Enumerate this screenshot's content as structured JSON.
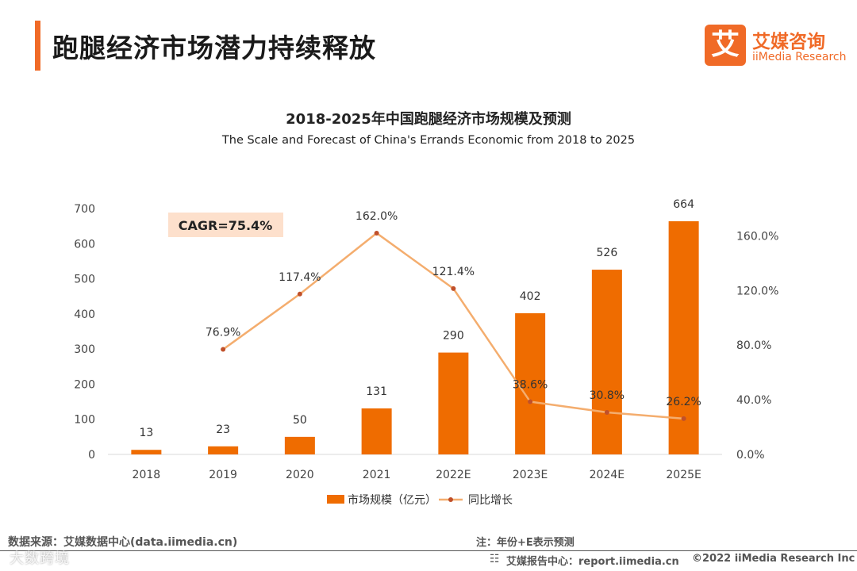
{
  "header": {
    "title": "跑腿经济市场潜力持续释放",
    "accent_color": "#f06a27"
  },
  "logo": {
    "mark": "艾",
    "name_cn": "艾媒咨询",
    "name_en": "iiMedia Research"
  },
  "chart_data": {
    "type": "bar",
    "title": "2018-2025年中国跑腿经济市场规模及预测",
    "subtitle": "The Scale and Forecast of China's Errands Economic from 2018 to 2025",
    "categories": [
      "2018",
      "2019",
      "2020",
      "2021",
      "2022E",
      "2023E",
      "2024E",
      "2025E"
    ],
    "series": [
      {
        "name": "市场规模（亿元）",
        "type": "bar",
        "axis": "left",
        "color": "#ef6c00",
        "values": [
          13,
          23,
          50,
          131,
          290,
          402,
          526,
          664
        ],
        "labels": [
          "13",
          "23",
          "50",
          "131",
          "290",
          "402",
          "526",
          "664"
        ]
      },
      {
        "name": "同比增长",
        "type": "line",
        "axis": "right",
        "color": "#f4ad6e",
        "values": [
          null,
          76.9,
          117.4,
          162.0,
          121.4,
          38.6,
          30.8,
          26.2
        ],
        "labels": [
          null,
          "76.9%",
          "117.4%",
          "162.0%",
          "121.4%",
          "38.6%",
          "30.8%",
          "26.2%"
        ]
      }
    ],
    "y_left": {
      "range": [
        0,
        700
      ],
      "ticks": [
        "0",
        "100",
        "200",
        "300",
        "400",
        "500",
        "600",
        "700"
      ]
    },
    "y_right": {
      "range": [
        0,
        180
      ],
      "ticks": [
        "0.0%",
        "40.0%",
        "80.0%",
        "120.0%",
        "160.0%"
      ]
    },
    "annotation": "CAGR=75.4%",
    "legend_position": "bottom",
    "grid": false
  },
  "footer": {
    "source": "数据来源：艾媒数据中心(data.iimedia.cn)",
    "note": "注：年份+E表示预测",
    "report": "艾媒报告中心：report.iimedia.cn",
    "copyright": "©2022  iiMedia Research  Inc",
    "watermark": "大数跨境"
  }
}
